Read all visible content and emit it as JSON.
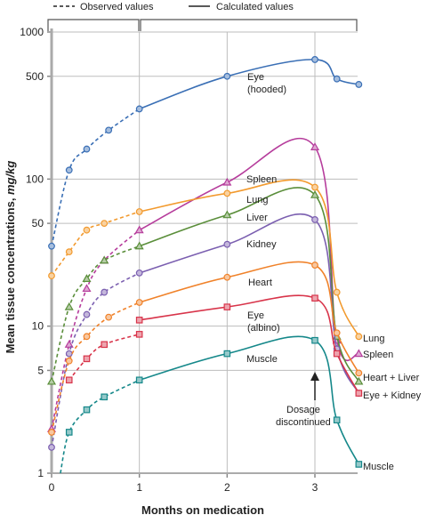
{
  "chart_data": {
    "type": "line",
    "y_scale": "log",
    "xlabel": "Months on medication",
    "ylabel": "Mean tissue concentrations, mg/kg",
    "xlim": [
      0,
      3.5
    ],
    "ylim": [
      1,
      1000
    ],
    "x_ticks": [
      "0",
      "1",
      "2",
      "3"
    ],
    "y_ticks": [
      "1",
      "5",
      "10",
      "50",
      "100",
      "500",
      "1000"
    ],
    "legend": {
      "observed": "Observed values",
      "calculated": "Calculated values"
    },
    "annotation": {
      "text": [
        "Dosage",
        "discontinued"
      ],
      "x": 3
    },
    "series": [
      {
        "name": "Eye (hooded)",
        "label_lines": [
          "Eye",
          "(hooded)"
        ],
        "color": "#3a6fb5",
        "marker": "circle",
        "observed": [
          [
            0,
            35
          ],
          [
            0.2,
            115
          ],
          [
            0.4,
            160
          ],
          [
            0.65,
            215
          ],
          [
            1,
            300
          ]
        ],
        "calculated": [
          [
            1,
            300
          ],
          [
            2,
            500
          ],
          [
            3,
            650
          ],
          [
            3.25,
            480
          ],
          [
            3.5,
            440
          ]
        ]
      },
      {
        "name": "Spleen",
        "label_lines": [
          "Spleen"
        ],
        "color": "#b63d9c",
        "marker": "triangle-up",
        "observed": [
          [
            0,
            2
          ],
          [
            0.2,
            7.5
          ],
          [
            0.4,
            18
          ],
          [
            0.6,
            28
          ],
          [
            1,
            45
          ]
        ],
        "calculated": [
          [
            1,
            45
          ],
          [
            2,
            95
          ],
          [
            3,
            165
          ],
          [
            3.25,
            8
          ],
          [
            3.5,
            6.5
          ]
        ]
      },
      {
        "name": "Lung",
        "label_lines": [
          "Lung"
        ],
        "color": "#f29a2e",
        "marker": "circle",
        "observed": [
          [
            0,
            22
          ],
          [
            0.2,
            32
          ],
          [
            0.4,
            45
          ],
          [
            0.6,
            50
          ],
          [
            1,
            60
          ]
        ],
        "calculated": [
          [
            1,
            60
          ],
          [
            2,
            80
          ],
          [
            3,
            88
          ],
          [
            3.25,
            17
          ],
          [
            3.5,
            8.5
          ]
        ]
      },
      {
        "name": "Liver",
        "label_lines": [
          "Liver"
        ],
        "color": "#5a8e3a",
        "marker": "triangle-up",
        "observed": [
          [
            0,
            4.2
          ],
          [
            0.2,
            13.5
          ],
          [
            0.4,
            21
          ],
          [
            0.6,
            28
          ],
          [
            1,
            35
          ]
        ],
        "calculated": [
          [
            1,
            35
          ],
          [
            2,
            57
          ],
          [
            3,
            78
          ],
          [
            3.25,
            8.5
          ],
          [
            3.5,
            4.2
          ]
        ]
      },
      {
        "name": "Kidney",
        "label_lines": [
          "Kidney"
        ],
        "color": "#7b5fb0",
        "marker": "circle",
        "observed": [
          [
            0,
            1.5
          ],
          [
            0.2,
            6.5
          ],
          [
            0.4,
            12
          ],
          [
            0.6,
            17
          ],
          [
            1,
            23
          ]
        ],
        "calculated": [
          [
            1,
            23
          ],
          [
            2,
            36
          ],
          [
            3,
            53
          ],
          [
            3.25,
            7
          ],
          [
            3.5,
            3.5
          ]
        ]
      },
      {
        "name": "Heart",
        "label_lines": [
          "Heart"
        ],
        "color": "#f0822a",
        "marker": "circle",
        "observed": [
          [
            0,
            1.9
          ],
          [
            0.2,
            5.8
          ],
          [
            0.4,
            8.5
          ],
          [
            0.65,
            11.5
          ],
          [
            1,
            14.5
          ]
        ],
        "calculated": [
          [
            1,
            14.5
          ],
          [
            2,
            21.5
          ],
          [
            3,
            26
          ],
          [
            3.25,
            9
          ],
          [
            3.5,
            4.8
          ]
        ]
      },
      {
        "name": "Eye (albino)",
        "label_lines": [
          "Eye",
          "(albino)"
        ],
        "color": "#d8344a",
        "marker": "square",
        "observed": [
          [
            0.2,
            4.3
          ],
          [
            0.4,
            6
          ],
          [
            0.6,
            7.5
          ],
          [
            1,
            8.8
          ]
        ],
        "calculated": [
          [
            1,
            11
          ],
          [
            2,
            13.5
          ],
          [
            3,
            15.5
          ],
          [
            3.25,
            6.5
          ],
          [
            3.5,
            3.5
          ]
        ]
      },
      {
        "name": "Muscle",
        "label_lines": [
          "Muscle"
        ],
        "color": "#15888a",
        "marker": "square",
        "observed": [
          [
            0.1,
            1
          ],
          [
            0.2,
            1.9
          ],
          [
            0.4,
            2.7
          ],
          [
            0.6,
            3.3
          ],
          [
            1,
            4.3
          ]
        ],
        "calculated": [
          [
            1,
            4.3
          ],
          [
            2,
            6.5
          ],
          [
            3,
            8
          ],
          [
            3.25,
            2.3
          ],
          [
            3.5,
            1.15
          ]
        ]
      }
    ],
    "end_labels": [
      "Lung",
      "Spleen",
      "Heart + Liver",
      "Eye + Kidney",
      "Muscle"
    ]
  }
}
